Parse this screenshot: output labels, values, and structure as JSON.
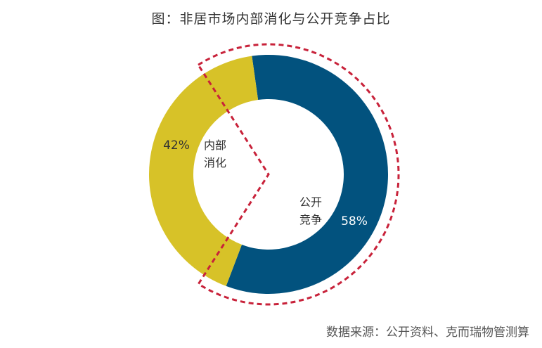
{
  "chart_data": {
    "type": "pie",
    "subtype": "donut",
    "title": "图：非居市场内部消化与公开竞争占比",
    "source": "数据来源：公开资料、克而瑞物管测算",
    "slices": [
      {
        "name_line1": "公开",
        "name_line2": "竞争",
        "value": 58,
        "label": "58%",
        "color": "#02527e"
      },
      {
        "name_line1": "内部",
        "name_line2": "消化",
        "value": 42,
        "label": "42%",
        "color": "#d7c228"
      }
    ],
    "highlight_color": "#c8223a"
  }
}
